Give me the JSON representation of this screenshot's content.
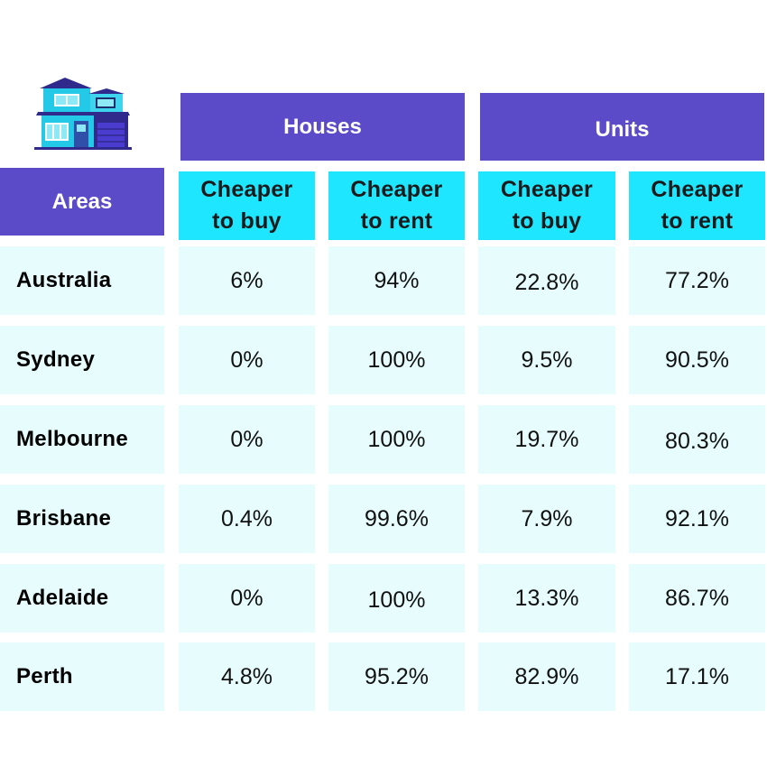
{
  "colors": {
    "header_purple": "#5b4bc8",
    "subheader_cyan": "#1fe6ff",
    "row_bg": "#e6fcfd"
  },
  "icons": {
    "logo": "house-icon"
  },
  "chart_data": {
    "type": "table",
    "row_header_label": "Areas",
    "column_groups": [
      {
        "label": "Houses",
        "columns": [
          "Cheaper to buy",
          "Cheaper to rent"
        ]
      },
      {
        "label": "Units",
        "columns": [
          "Cheaper to buy",
          "Cheaper to rent"
        ]
      }
    ],
    "subheaders": [
      [
        "Cheaper",
        "to buy"
      ],
      [
        "Cheaper",
        "to rent"
      ],
      [
        "Cheaper",
        "to buy"
      ],
      [
        "Cheaper",
        "to rent"
      ]
    ],
    "rows": [
      {
        "area": "Australia",
        "values": [
          "6%",
          "94%",
          "22.8%",
          "77.2%"
        ]
      },
      {
        "area": "Sydney",
        "values": [
          "0%",
          "100%",
          "9.5%",
          "90.5%"
        ]
      },
      {
        "area": "Melbourne",
        "values": [
          "0%",
          "100%",
          "19.7%",
          "80.3%"
        ]
      },
      {
        "area": "Brisbane",
        "values": [
          "0.4%",
          "99.6%",
          "7.9%",
          "92.1%"
        ]
      },
      {
        "area": "Adelaide",
        "values": [
          "0%",
          "100%",
          "13.3%",
          "86.7%"
        ]
      },
      {
        "area": "Perth",
        "values": [
          "4.8%",
          "95.2%",
          "82.9%",
          "17.1%"
        ]
      }
    ]
  }
}
